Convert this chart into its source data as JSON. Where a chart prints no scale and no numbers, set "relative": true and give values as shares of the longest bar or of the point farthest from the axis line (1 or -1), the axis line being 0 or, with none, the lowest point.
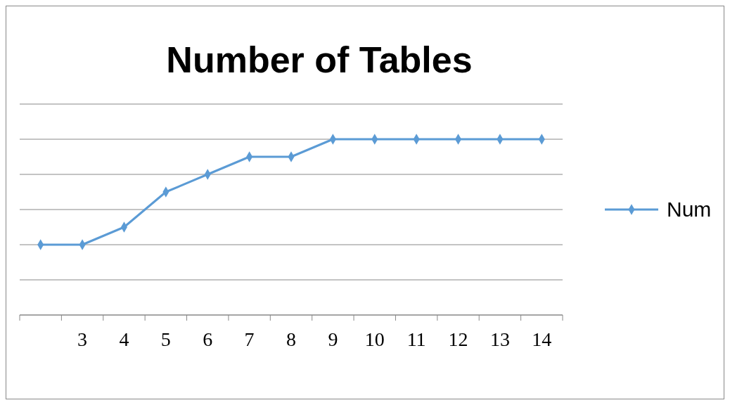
{
  "chart_data": {
    "type": "line",
    "title": "Number of Tables",
    "categories": [
      null,
      "3",
      "4",
      "5",
      "6",
      "7",
      "8",
      "9",
      "10",
      "11",
      "12",
      "13",
      "14"
    ],
    "series": [
      {
        "name": "Num",
        "color": "#5b9bd5",
        "values": [
          0.4,
          0.4,
          0.5,
          0.7,
          0.8,
          0.9,
          0.9,
          1,
          1,
          1,
          1,
          1,
          1
        ]
      }
    ],
    "relative": true,
    "grid": "y",
    "legend": "right",
    "marker": "diamond",
    "line_style": "solid"
  }
}
